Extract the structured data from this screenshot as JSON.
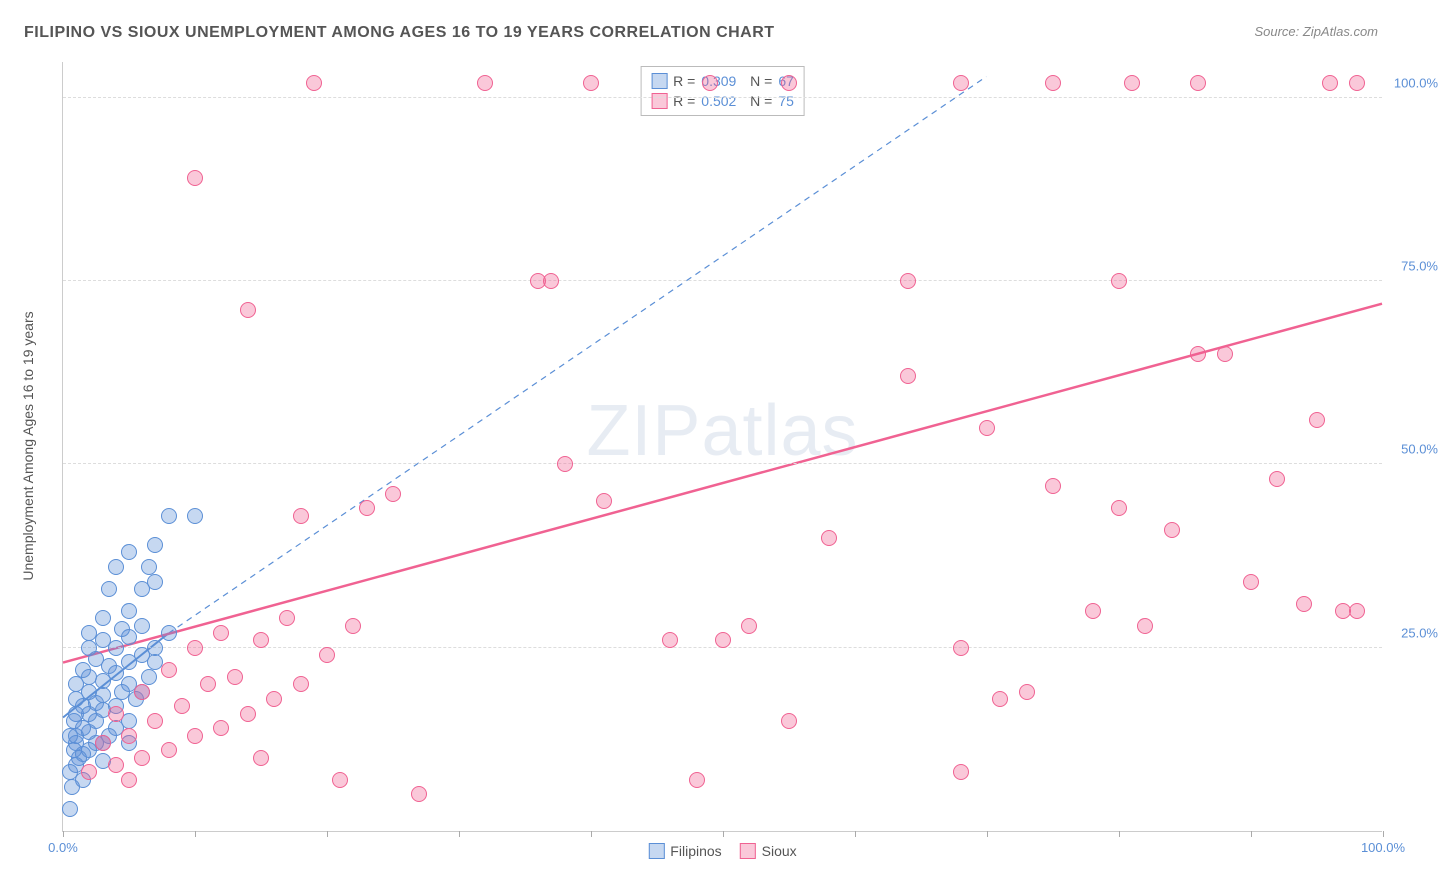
{
  "title": "FILIPINO VS SIOUX UNEMPLOYMENT AMONG AGES 16 TO 19 YEARS CORRELATION CHART",
  "source": "Source: ZipAtlas.com",
  "ylabel": "Unemployment Among Ages 16 to 19 years",
  "watermark": {
    "part1": "ZIP",
    "part2": "atlas"
  },
  "chart": {
    "type": "scatter",
    "xlim": [
      0,
      100
    ],
    "ylim": [
      0,
      105
    ],
    "xticks": [
      0,
      10,
      20,
      30,
      40,
      50,
      60,
      70,
      80,
      90,
      100
    ],
    "xtick_labels": {
      "0": "0.0%",
      "100": "100.0%"
    },
    "yticks": [
      25,
      50,
      75,
      100
    ],
    "ytick_labels": [
      "25.0%",
      "50.0%",
      "75.0%",
      "100.0%"
    ],
    "grid_color": "#dddddd",
    "axis_color": "#cccccc",
    "background_color": "#ffffff",
    "marker_radius": 8,
    "marker_stroke_width": 1.2,
    "marker_fill_opacity": 0.35
  },
  "series": [
    {
      "name": "Filipinos",
      "color": "#5b8fd6",
      "r": "0.309",
      "n": "67",
      "trend": {
        "x1": 0,
        "y1": 15.5,
        "x2": 8,
        "y2": 27,
        "dashed": false,
        "width": 2,
        "extend": {
          "x2": 70,
          "y2": 103,
          "dashed": true
        }
      },
      "points": [
        [
          0.5,
          3
        ],
        [
          0.7,
          6
        ],
        [
          0.5,
          8
        ],
        [
          1,
          9
        ],
        [
          1.2,
          10
        ],
        [
          0.8,
          11
        ],
        [
          1.5,
          10.5
        ],
        [
          2,
          11
        ],
        [
          1,
          12
        ],
        [
          2.5,
          12
        ],
        [
          3,
          12
        ],
        [
          0.5,
          13
        ],
        [
          1,
          13
        ],
        [
          2,
          13.5
        ],
        [
          3.5,
          13
        ],
        [
          1.5,
          14
        ],
        [
          0.8,
          15
        ],
        [
          2.5,
          15
        ],
        [
          4,
          14
        ],
        [
          1,
          16
        ],
        [
          2,
          16
        ],
        [
          3,
          16.5
        ],
        [
          5,
          15
        ],
        [
          1.5,
          17
        ],
        [
          2.5,
          17.5
        ],
        [
          4,
          17
        ],
        [
          1,
          18
        ],
        [
          3,
          18.5
        ],
        [
          5.5,
          18
        ],
        [
          2,
          19
        ],
        [
          4.5,
          19
        ],
        [
          6,
          19
        ],
        [
          1,
          20
        ],
        [
          3,
          20.5
        ],
        [
          5,
          20
        ],
        [
          2,
          21
        ],
        [
          4,
          21.5
        ],
        [
          6.5,
          21
        ],
        [
          1.5,
          22
        ],
        [
          3.5,
          22.5
        ],
        [
          5,
          23
        ],
        [
          2.5,
          23.5
        ],
        [
          7,
          23
        ],
        [
          2,
          25
        ],
        [
          4,
          25
        ],
        [
          6,
          24
        ],
        [
          3,
          26
        ],
        [
          5,
          26.5
        ],
        [
          7,
          25
        ],
        [
          2,
          27
        ],
        [
          4.5,
          27.5
        ],
        [
          6,
          28
        ],
        [
          8,
          27
        ],
        [
          3,
          29
        ],
        [
          5,
          30
        ],
        [
          3.5,
          33
        ],
        [
          6,
          33
        ],
        [
          7,
          34
        ],
        [
          4,
          36
        ],
        [
          6.5,
          36
        ],
        [
          5,
          38
        ],
        [
          7,
          39
        ],
        [
          8,
          43
        ],
        [
          10,
          43
        ],
        [
          1.5,
          7
        ],
        [
          3,
          9.5
        ],
        [
          5,
          12
        ]
      ]
    },
    {
      "name": "Sioux",
      "color": "#f06292",
      "r": "0.502",
      "n": "75",
      "trend": {
        "x1": 0,
        "y1": 23,
        "x2": 100,
        "y2": 72,
        "dashed": false,
        "width": 2.5
      },
      "points": [
        [
          2,
          8
        ],
        [
          4,
          9
        ],
        [
          6,
          10
        ],
        [
          3,
          12
        ],
        [
          8,
          11
        ],
        [
          5,
          13
        ],
        [
          10,
          13
        ],
        [
          7,
          15
        ],
        [
          12,
          14
        ],
        [
          4,
          16
        ],
        [
          9,
          17
        ],
        [
          14,
          16
        ],
        [
          6,
          19
        ],
        [
          11,
          20
        ],
        [
          16,
          18
        ],
        [
          8,
          22
        ],
        [
          13,
          21
        ],
        [
          18,
          20
        ],
        [
          5,
          7
        ],
        [
          21,
          7
        ],
        [
          27,
          5
        ],
        [
          48,
          7
        ],
        [
          10,
          25
        ],
        [
          15,
          26
        ],
        [
          20,
          24
        ],
        [
          14,
          71
        ],
        [
          18,
          43
        ],
        [
          23,
          44
        ],
        [
          25,
          46
        ],
        [
          12,
          27
        ],
        [
          17,
          29
        ],
        [
          22,
          28
        ],
        [
          50,
          26
        ],
        [
          52,
          28
        ],
        [
          38,
          50
        ],
        [
          41,
          45
        ],
        [
          55,
          15
        ],
        [
          58,
          40
        ],
        [
          64,
          62
        ],
        [
          68,
          25
        ],
        [
          70,
          55
        ],
        [
          73,
          19
        ],
        [
          75,
          47
        ],
        [
          78,
          30
        ],
        [
          80,
          44
        ],
        [
          82,
          28
        ],
        [
          84,
          41
        ],
        [
          86,
          65
        ],
        [
          88,
          65
        ],
        [
          90,
          34
        ],
        [
          92,
          48
        ],
        [
          94,
          31
        ],
        [
          95,
          56
        ],
        [
          97,
          30
        ],
        [
          98,
          30
        ],
        [
          10,
          89
        ],
        [
          19,
          102
        ],
        [
          32,
          102
        ],
        [
          40,
          102
        ],
        [
          49,
          102
        ],
        [
          55,
          102
        ],
        [
          68,
          102
        ],
        [
          75,
          102
        ],
        [
          81,
          102
        ],
        [
          86,
          102
        ],
        [
          96,
          102
        ],
        [
          98,
          102
        ],
        [
          36,
          75
        ],
        [
          37,
          75
        ],
        [
          64,
          75
        ],
        [
          80,
          75
        ],
        [
          46,
          26
        ],
        [
          71,
          18
        ],
        [
          68,
          8
        ],
        [
          15,
          10
        ]
      ]
    }
  ],
  "legend_bottom": [
    {
      "label": "Filipinos",
      "color": "#5b8fd6"
    },
    {
      "label": "Sioux",
      "color": "#f06292"
    }
  ]
}
